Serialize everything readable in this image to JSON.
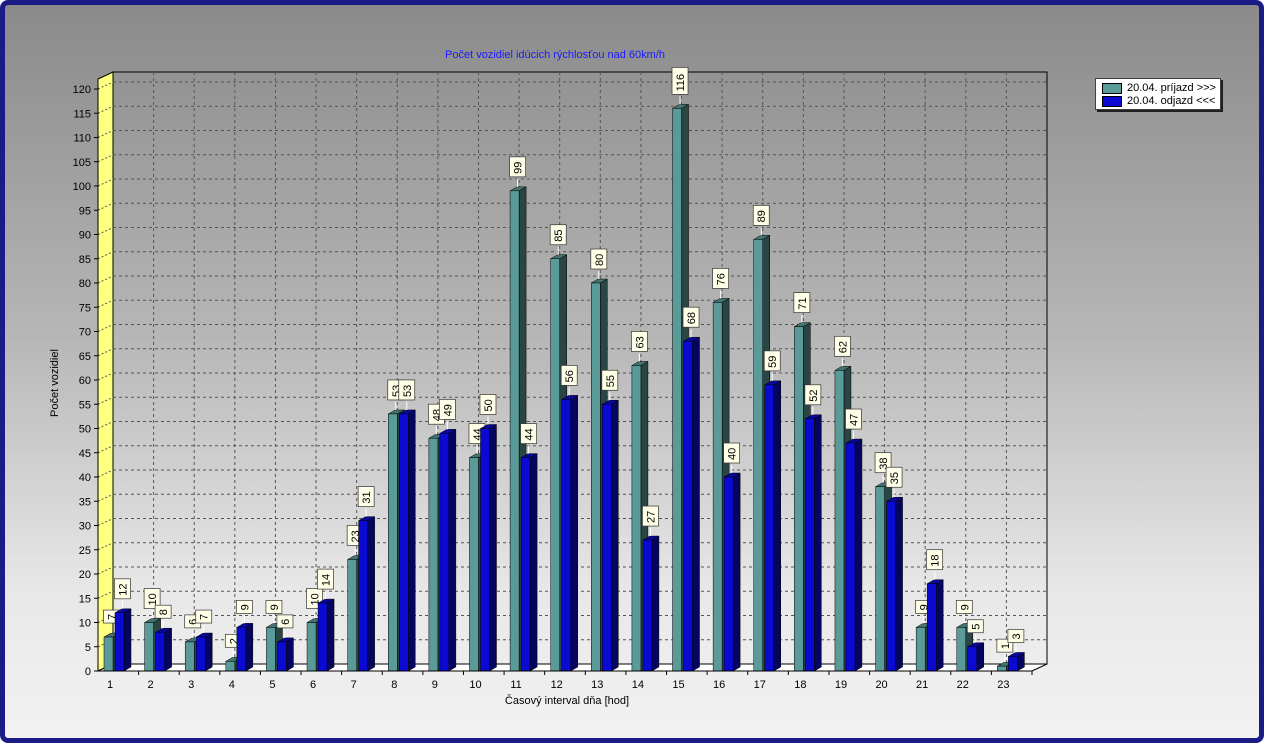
{
  "chart_data": {
    "type": "bar",
    "title": "Počet vozidiel idúcich rýchlosťou nad 60km/h",
    "xlabel": "Časový interval dňa [hod]",
    "ylabel": "Počet vozidiel",
    "ylim": [
      0,
      120
    ],
    "ytick_step": 5,
    "categories": [
      "1",
      "2",
      "3",
      "4",
      "5",
      "6",
      "7",
      "8",
      "9",
      "10",
      "11",
      "12",
      "13",
      "14",
      "15",
      "16",
      "17",
      "18",
      "19",
      "20",
      "21",
      "22",
      "23"
    ],
    "series": [
      {
        "name": "20.04.  príjazd >>>",
        "color": "#5a9a98",
        "values": [
          7,
          10,
          6,
          2,
          9,
          10,
          23,
          53,
          48,
          44,
          99,
          85,
          80,
          63,
          116,
          76,
          89,
          71,
          62,
          38,
          9,
          9,
          1
        ]
      },
      {
        "name": "20.04.  odjazd <<<",
        "color": "#0a0ad2",
        "values": [
          12,
          8,
          7,
          9,
          6,
          14,
          31,
          53,
          49,
          50,
          44,
          56,
          55,
          27,
          68,
          40,
          59,
          52,
          47,
          35,
          18,
          5,
          3
        ]
      }
    ],
    "grid": true,
    "legend_position": "top-right"
  }
}
